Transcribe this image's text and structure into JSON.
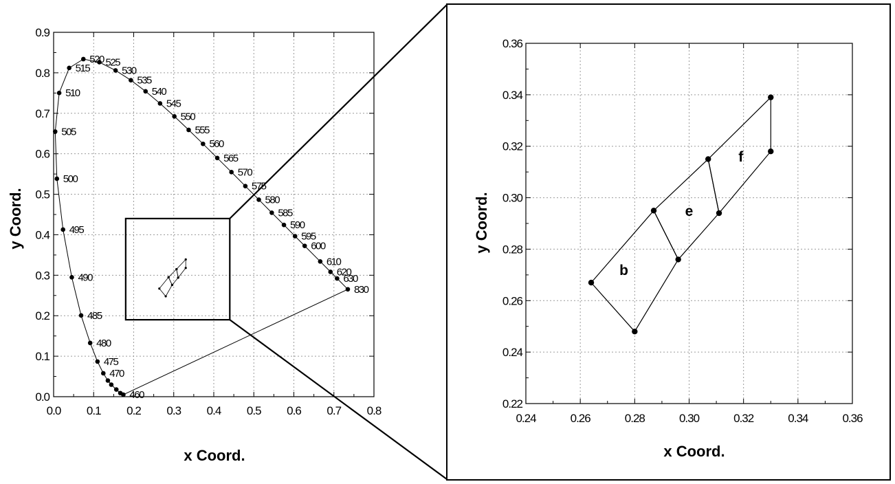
{
  "chart_data": [
    {
      "type": "line",
      "subtype": "cie-chromaticity-diagram",
      "title": "",
      "xlabel": "x Coord.",
      "ylabel": "y Coord.",
      "xlim": [
        0.0,
        0.8
      ],
      "ylim": [
        0.0,
        0.9
      ],
      "x_ticks": [
        "0.0",
        "0.1",
        "0.2",
        "0.3",
        "0.4",
        "0.5",
        "0.6",
        "0.7",
        "0.8"
      ],
      "y_ticks": [
        "0.0",
        "0.1",
        "0.2",
        "0.3",
        "0.4",
        "0.5",
        "0.6",
        "0.7",
        "0.8",
        "0.9"
      ],
      "grid": true,
      "series": [
        {
          "points": [
            {
              "x": 0.1741,
              "y": 0.005,
              "label": "460"
            },
            {
              "x": 0.1666,
              "y": 0.0089,
              "label": ""
            },
            {
              "x": 0.1566,
              "y": 0.0177,
              "label": ""
            },
            {
              "x": 0.144,
              "y": 0.0297,
              "label": ""
            },
            {
              "x": 0.1355,
              "y": 0.0399,
              "label": ""
            },
            {
              "x": 0.1241,
              "y": 0.0578,
              "label": "470"
            },
            {
              "x": 0.1096,
              "y": 0.0868,
              "label": "475"
            },
            {
              "x": 0.0913,
              "y": 0.1327,
              "label": "480"
            },
            {
              "x": 0.0687,
              "y": 0.2007,
              "label": "485"
            },
            {
              "x": 0.0454,
              "y": 0.295,
              "label": "490"
            },
            {
              "x": 0.0235,
              "y": 0.4127,
              "label": "495"
            },
            {
              "x": 0.0082,
              "y": 0.5384,
              "label": "500"
            },
            {
              "x": 0.0039,
              "y": 0.6548,
              "label": "505"
            },
            {
              "x": 0.0139,
              "y": 0.7502,
              "label": "510"
            },
            {
              "x": 0.0389,
              "y": 0.812,
              "label": "515"
            },
            {
              "x": 0.0743,
              "y": 0.8338,
              "label": "520"
            },
            {
              "x": 0.1142,
              "y": 0.8262,
              "label": "525"
            },
            {
              "x": 0.1547,
              "y": 0.8059,
              "label": "530"
            },
            {
              "x": 0.1929,
              "y": 0.7816,
              "label": "535"
            },
            {
              "x": 0.2296,
              "y": 0.7543,
              "label": "540"
            },
            {
              "x": 0.2658,
              "y": 0.7243,
              "label": "545"
            },
            {
              "x": 0.3016,
              "y": 0.6923,
              "label": "550"
            },
            {
              "x": 0.3373,
              "y": 0.6589,
              "label": "555"
            },
            {
              "x": 0.3731,
              "y": 0.6245,
              "label": "560"
            },
            {
              "x": 0.4087,
              "y": 0.5896,
              "label": "565"
            },
            {
              "x": 0.4441,
              "y": 0.5547,
              "label": "570"
            },
            {
              "x": 0.4788,
              "y": 0.5202,
              "label": "575"
            },
            {
              "x": 0.5125,
              "y": 0.4866,
              "label": "580"
            },
            {
              "x": 0.5448,
              "y": 0.4544,
              "label": "585"
            },
            {
              "x": 0.5752,
              "y": 0.4242,
              "label": "590"
            },
            {
              "x": 0.6029,
              "y": 0.3965,
              "label": "595"
            },
            {
              "x": 0.627,
              "y": 0.3725,
              "label": "600"
            },
            {
              "x": 0.6658,
              "y": 0.334,
              "label": "610"
            },
            {
              "x": 0.6915,
              "y": 0.3083,
              "label": "620"
            },
            {
              "x": 0.7079,
              "y": 0.292,
              "label": "630"
            },
            {
              "x": 0.7347,
              "y": 0.2653,
              "label": "830"
            }
          ]
        }
      ],
      "zoom_box": {
        "xlim": [
          0.18,
          0.44
        ],
        "ylim": [
          0.19,
          0.44
        ]
      },
      "inset_quads": [
        [
          [
            0.264,
            0.267
          ],
          [
            0.287,
            0.295
          ],
          [
            0.296,
            0.276
          ],
          [
            0.28,
            0.248
          ]
        ],
        [
          [
            0.287,
            0.295
          ],
          [
            0.307,
            0.315
          ],
          [
            0.311,
            0.294
          ],
          [
            0.296,
            0.276
          ]
        ],
        [
          [
            0.307,
            0.315
          ],
          [
            0.33,
            0.339
          ],
          [
            0.33,
            0.318
          ],
          [
            0.311,
            0.294
          ]
        ]
      ]
    },
    {
      "type": "line",
      "subtype": "zoomed-region",
      "title": "",
      "xlabel": "x  Coord.",
      "ylabel": "y Coord.",
      "xlim": [
        0.24,
        0.36
      ],
      "ylim": [
        0.22,
        0.36
      ],
      "x_ticks": [
        "0.24",
        "0.26",
        "0.28",
        "0.30",
        "0.32",
        "0.34",
        "0.36"
      ],
      "y_ticks": [
        "0.22",
        "0.24",
        "0.26",
        "0.28",
        "0.30",
        "0.32",
        "0.34",
        "0.36"
      ],
      "grid": true,
      "points": [
        {
          "x": 0.264,
          "y": 0.267
        },
        {
          "x": 0.28,
          "y": 0.248
        },
        {
          "x": 0.287,
          "y": 0.295
        },
        {
          "x": 0.296,
          "y": 0.276
        },
        {
          "x": 0.307,
          "y": 0.315
        },
        {
          "x": 0.311,
          "y": 0.294
        },
        {
          "x": 0.33,
          "y": 0.339
        },
        {
          "x": 0.33,
          "y": 0.318
        }
      ],
      "regions": [
        {
          "name": "b",
          "points": [
            [
              0.264,
              0.267
            ],
            [
              0.287,
              0.295
            ],
            [
              0.296,
              0.276
            ],
            [
              0.28,
              0.248
            ]
          ],
          "label_at": [
            0.276,
            0.27
          ]
        },
        {
          "name": "e",
          "points": [
            [
              0.287,
              0.295
            ],
            [
              0.307,
              0.315
            ],
            [
              0.311,
              0.294
            ],
            [
              0.296,
              0.276
            ]
          ],
          "label_at": [
            0.3,
            0.293
          ]
        },
        {
          "name": "f",
          "points": [
            [
              0.307,
              0.315
            ],
            [
              0.33,
              0.339
            ],
            [
              0.33,
              0.318
            ],
            [
              0.311,
              0.294
            ]
          ],
          "label_at": [
            0.319,
            0.314
          ]
        }
      ]
    }
  ]
}
